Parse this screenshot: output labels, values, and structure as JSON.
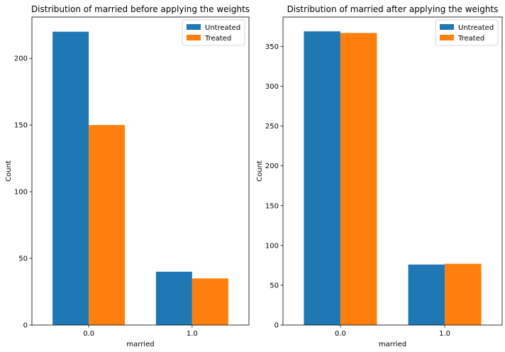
{
  "chart_data": [
    {
      "type": "bar",
      "title": "Distribution of married before applying the weights",
      "xlabel": "married",
      "ylabel": "Count",
      "categories": [
        "0.0",
        "1.0"
      ],
      "series": [
        {
          "name": "Untreated",
          "values": [
            220,
            40
          ],
          "color": "#1f77b4"
        },
        {
          "name": "Treated",
          "values": [
            150,
            35
          ],
          "color": "#ff7f0e"
        }
      ],
      "ylim": [
        0,
        231
      ],
      "yticks": [
        0,
        50,
        100,
        150,
        200
      ],
      "legend": "top-right",
      "grid": false
    },
    {
      "type": "bar",
      "title": "Distribution of married after applying the weights",
      "xlabel": "married",
      "ylabel": "Count",
      "categories": [
        "0.0",
        "1.0"
      ],
      "series": [
        {
          "name": "Untreated",
          "values": [
            369,
            76
          ],
          "color": "#1f77b4"
        },
        {
          "name": "Treated",
          "values": [
            367,
            77
          ],
          "color": "#ff7f0e"
        }
      ],
      "ylim": [
        0,
        387
      ],
      "yticks": [
        0,
        50,
        100,
        150,
        200,
        250,
        300,
        350
      ],
      "legend": "top-right",
      "grid": false
    }
  ]
}
